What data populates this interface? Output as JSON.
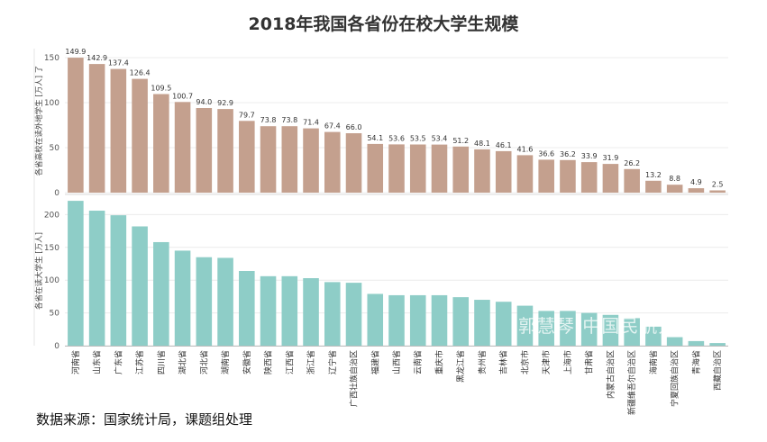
{
  "title": "2018年我国各省份在校大学生规模",
  "source": "数据来源：国家统计局，课题组处理",
  "watermark": "郭慧琴-中国民航大学",
  "chart_data": {
    "type": "bar",
    "categories": [
      "河南省",
      "山东省",
      "广东省",
      "江苏省",
      "四川省",
      "湖北省",
      "河北省",
      "湖南省",
      "安徽省",
      "陕西省",
      "江西省",
      "浙江省",
      "辽宁省",
      "广西壮族自治区",
      "福建省",
      "山西省",
      "云南省",
      "重庆市",
      "黑龙江省",
      "贵州省",
      "吉林省",
      "北京市",
      "天津市",
      "上海市",
      "甘肃省",
      "内蒙古自治区",
      "新疆维吾尔自治区",
      "海南省",
      "宁夏回族自治区",
      "青海省",
      "西藏自治区"
    ],
    "charts": [
      {
        "ylabel": "各省高校在读外地学生 [万人] 了",
        "ylim": [
          0,
          160
        ],
        "yticks": [
          0,
          50,
          100,
          150
        ],
        "color": "#c4a08e",
        "show_labels": true,
        "values": [
          149.9,
          142.9,
          137.4,
          126.4,
          109.5,
          100.7,
          94.0,
          92.9,
          79.7,
          73.8,
          73.8,
          71.4,
          67.4,
          66.0,
          54.1,
          53.6,
          53.5,
          53.4,
          51.2,
          48.1,
          46.1,
          41.6,
          36.6,
          36.2,
          33.9,
          31.9,
          26.2,
          13.2,
          8.8,
          4.9,
          2.5
        ],
        "labels": [
          "149.9",
          "142.9",
          "137.4",
          "126.4",
          "109.5",
          "100.7",
          "94.0",
          "92.9",
          "79.7",
          "73.8",
          "73.8",
          "71.4",
          "67.4",
          "66.0",
          "54.1",
          "53.6",
          "53.5",
          "53.4",
          "51.2",
          "48.1",
          "46.1",
          "41.6",
          "36.6",
          "36.2",
          "33.9",
          "31.9",
          "26.2",
          "13.2",
          "8.8",
          "4.9",
          "2.5"
        ]
      },
      {
        "ylabel": "各省在读大学生 [万人]",
        "ylim": [
          0,
          228
        ],
        "yticks": [
          0,
          50,
          100,
          150,
          200
        ],
        "color": "#8ecdc7",
        "show_labels": false,
        "values": [
          221,
          206,
          199,
          182,
          158,
          145,
          135,
          134,
          114,
          106,
          106,
          103,
          97,
          96,
          79,
          77,
          77,
          77,
          74,
          70,
          67,
          61,
          53,
          53,
          50,
          47,
          42,
          29,
          13,
          7,
          4
        ]
      }
    ],
    "grid": true
  }
}
